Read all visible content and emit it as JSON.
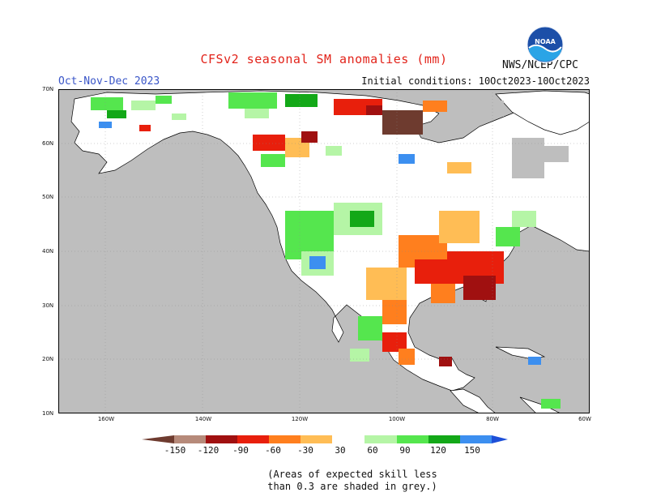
{
  "header": {
    "title": "CFSv2 seasonal SM anomalies (mm)",
    "period": "Oct-Nov-Dec 2023",
    "initial_conditions": "Initial conditions: 10Oct2023-10Oct2023",
    "agency": "NWS/NCEP/CPC",
    "logo_text": "NOAA"
  },
  "map": {
    "lat_labels": [
      "70N",
      "60N",
      "50N",
      "40N",
      "30N",
      "20N",
      "10N"
    ],
    "lon_labels": [
      "160W",
      "140W",
      "120W",
      "100W",
      "80W",
      "60W"
    ]
  },
  "legend": {
    "labels": [
      "-150",
      "-120",
      "-90",
      "-60",
      "-30",
      "30",
      "60",
      "90",
      "120",
      "150"
    ],
    "colors": {
      "lt_m150": "#6e3b2f",
      "m150_m120": "#b68a7a",
      "m120_m90": "#a01010",
      "m90_m60": "#e81f0c",
      "m60_m30": "#ff7f1e",
      "m30_0": "#ffbd55",
      "neutral": "#ffffff",
      "p30_p60": "#b5f5a6",
      "p60_p90": "#55e64e",
      "p90_p120": "#13a818",
      "p120_p150": "#3c8ff0",
      "gt_p150": "#1d4fd8"
    }
  },
  "footnote": {
    "line1": "(Areas of expected skill less",
    "line2": "than 0.3 are shaded in grey.)"
  }
}
